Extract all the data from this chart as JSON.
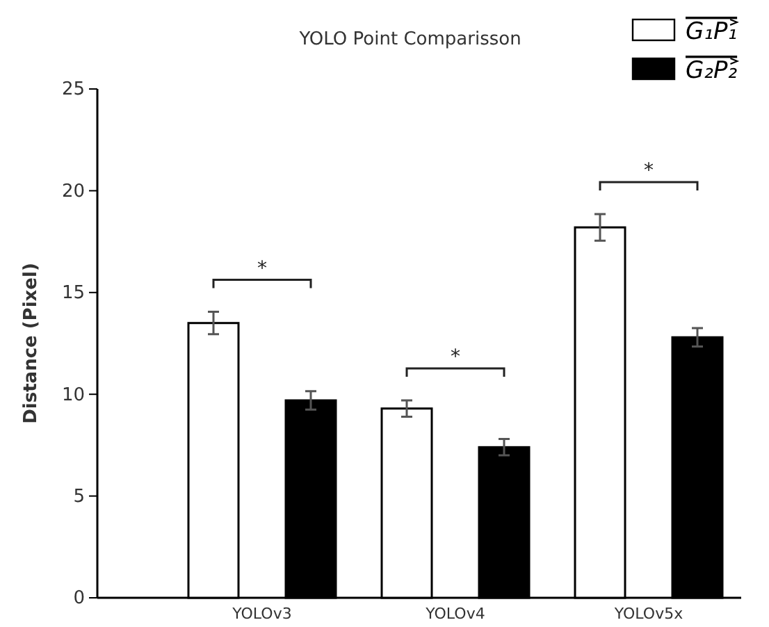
{
  "chart_data": {
    "type": "bar",
    "title": "YOLO Point Comparisson",
    "ylabel": "Distance (Pixel)",
    "categories": [
      "YOLOv3",
      "YOLOv4",
      "YOLOv5x"
    ],
    "series": [
      {
        "name": "G₁P₁",
        "color": "#ffffff",
        "values": [
          13.5,
          9.3,
          18.2
        ],
        "errors": [
          0.55,
          0.4,
          0.65
        ]
      },
      {
        "name": "G₂P₂",
        "color": "#000000",
        "values": [
          9.7,
          7.4,
          12.8
        ],
        "errors": [
          0.45,
          0.4,
          0.45
        ]
      }
    ],
    "ylim": [
      0,
      25
    ],
    "yticks": [
      0,
      5,
      10,
      15,
      20,
      25
    ],
    "grid": false,
    "legend": "top right",
    "annotations": [
      "*",
      "*",
      "*"
    ]
  }
}
